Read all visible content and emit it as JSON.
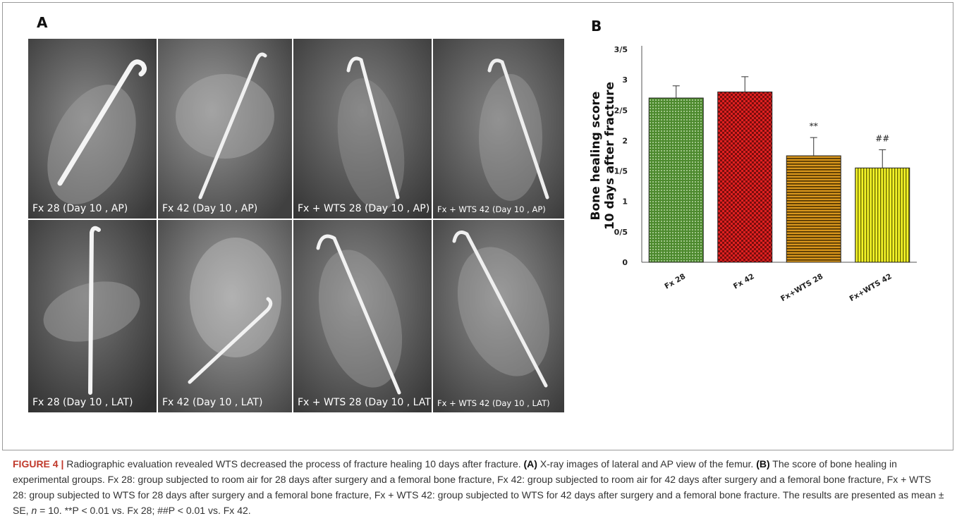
{
  "panel_a_label": "A",
  "panel_b_label": "B",
  "xrays": [
    {
      "label": "Fx 28 (Day 10 , AP)"
    },
    {
      "label": "Fx 42 (Day 10 , AP)"
    },
    {
      "label": "Fx + WTS 28 (Day 10 , AP)"
    },
    {
      "label": "Fx + WTS 42 (Day 10 , AP)"
    },
    {
      "label": "Fx 28 (Day 10 , LAT)"
    },
    {
      "label": "Fx 42 (Day 10 , LAT)"
    },
    {
      "label": "Fx + WTS 28 (Day 10 , LAT)"
    },
    {
      "label": "Fx + WTS 42 (Day 10 , LAT)"
    }
  ],
  "chart_data": {
    "type": "bar",
    "ylabel_line1": "Bone healing score",
    "ylabel_line2": "10 days after fracture",
    "ylim": [
      0,
      3.5
    ],
    "yticks": [
      {
        "value": 0,
        "label": "0"
      },
      {
        "value": 0.5,
        "label": "0/5"
      },
      {
        "value": 1,
        "label": "1"
      },
      {
        "value": 1.5,
        "label": "1/5"
      },
      {
        "value": 2,
        "label": "2"
      },
      {
        "value": 2.5,
        "label": "2/5"
      },
      {
        "value": 3,
        "label": "3"
      },
      {
        "value": 3.5,
        "label": "3/5"
      }
    ],
    "categories": [
      "Fx 28",
      "Fx 42",
      "Fx+WTS 28",
      "Fx+WTS 42"
    ],
    "values": [
      2.7,
      2.8,
      1.75,
      1.55
    ],
    "errors": [
      0.2,
      0.25,
      0.3,
      0.3
    ],
    "annotations": [
      "",
      "",
      "**",
      "##"
    ],
    "colors": [
      "#5a9a3a",
      "#cc1f1f",
      "#c88a18",
      "#f2f21e"
    ],
    "grid": false
  },
  "caption": {
    "figure_label": "FIGURE 4 |",
    "intro": " Radiographic evaluation revealed WTS decreased the process of fracture healing 10 days after fracture. ",
    "a_label": "(A)",
    "a_text": " X-ray images of lateral and AP view of the femur. ",
    "b_label": "(B)",
    "b_text": " The score of bone healing in experimental groups. Fx 28: group subjected to room air for 28 days after surgery and a femoral bone fracture, Fx 42: group subjected to room air for 42 days after surgery and a femoral bone fracture, Fx + WTS 28: group subjected to WTS for 28 days after surgery and a femoral bone fracture, Fx + WTS 42: group subjected to WTS for 42 days after surgery and a femoral bone fracture. The results are presented as mean ± SE, ",
    "n_text": "n",
    "n_value": " = 10. **P < 0.01 vs. Fx 28; ##P < 0.01 vs. Fx 42."
  }
}
